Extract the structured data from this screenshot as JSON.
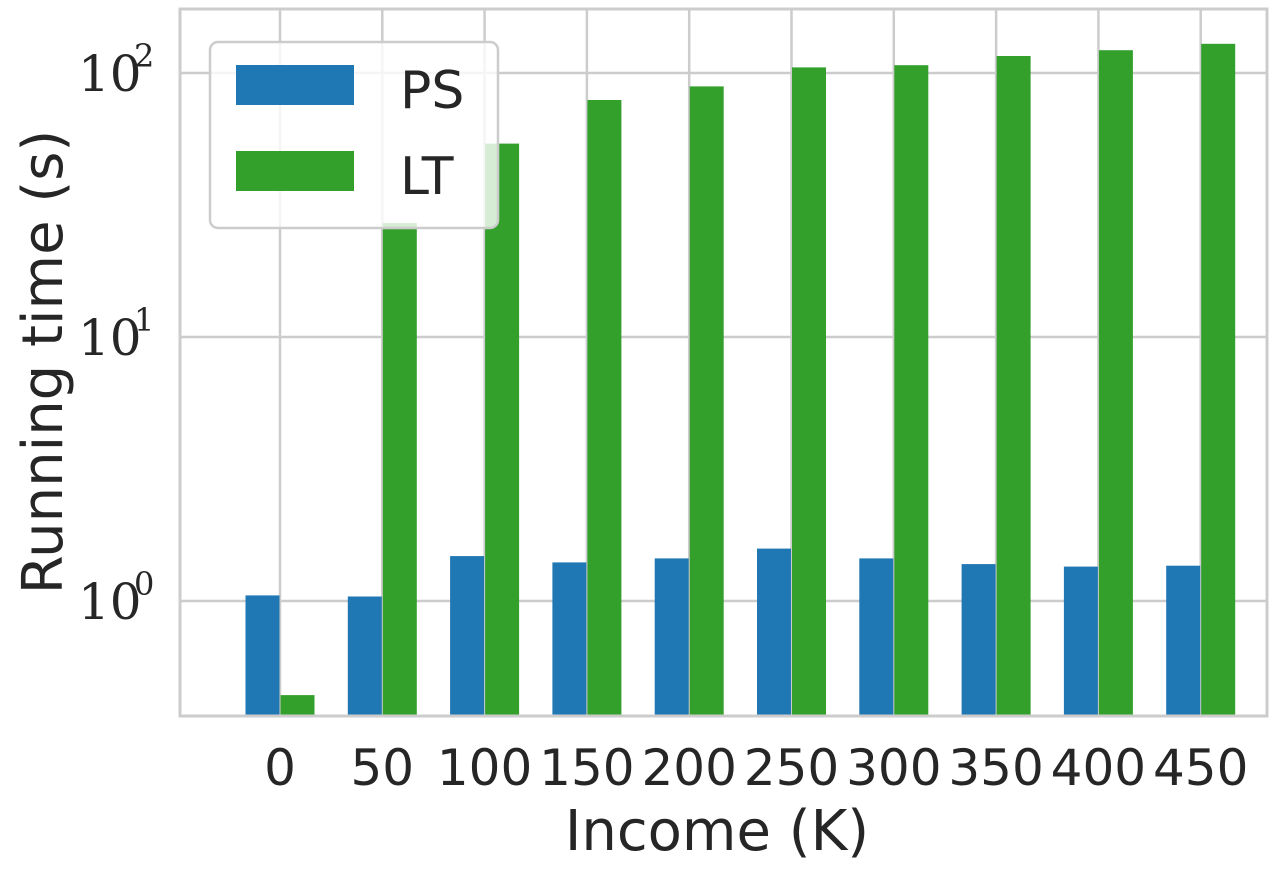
{
  "chart_data": {
    "type": "bar",
    "xlabel": "Income (K)",
    "ylabel": "Running time (s)",
    "yscale": "log",
    "ylim": [
      0.4,
      180
    ],
    "categories": [
      "0",
      "50",
      "100",
      "150",
      "200",
      "250",
      "300",
      "350",
      "400",
      "450"
    ],
    "yticks": [
      {
        "base": "10",
        "exp": "0",
        "value": 1
      },
      {
        "base": "10",
        "exp": "1",
        "value": 10
      },
      {
        "base": "10",
        "exp": "2",
        "value": 100
      }
    ],
    "series": [
      {
        "name": "PS",
        "color": "#1f77b4",
        "values": [
          1.05,
          1.04,
          1.48,
          1.4,
          1.45,
          1.58,
          1.45,
          1.38,
          1.35,
          1.36
        ]
      },
      {
        "name": "LT",
        "color": "#33a02c",
        "values": [
          0.44,
          27,
          54,
          79,
          89,
          105,
          107,
          116,
          122,
          129
        ]
      }
    ],
    "grid": true,
    "legend": "top-left"
  }
}
